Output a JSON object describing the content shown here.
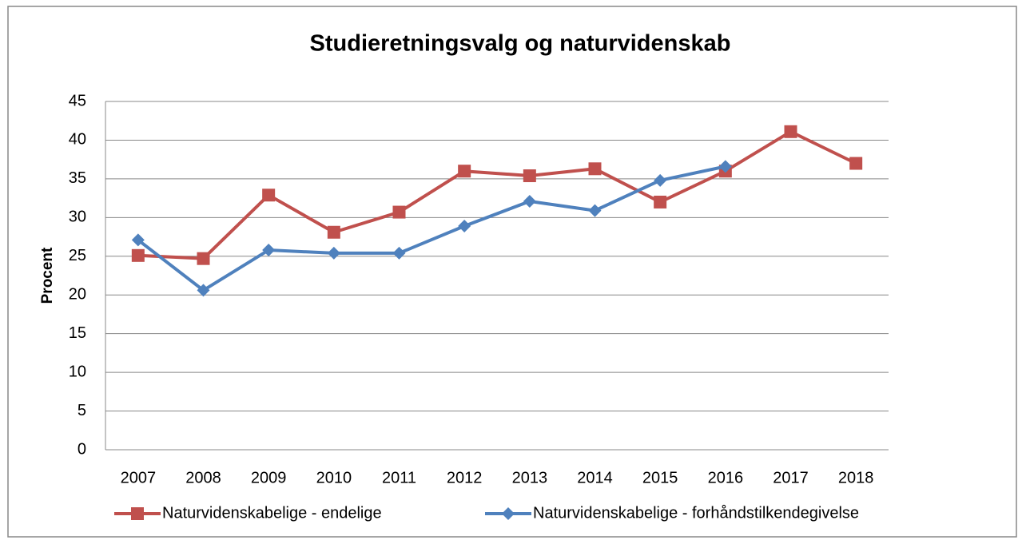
{
  "chart_data": {
    "type": "line",
    "title": "Studieretningsvalg og naturvidenskab",
    "y_label": "Procent",
    "categories": [
      "2007",
      "2008",
      "2009",
      "2010",
      "2011",
      "2012",
      "2013",
      "2014",
      "2015",
      "2016",
      "2017",
      "2018"
    ],
    "series": [
      {
        "name": "Naturvidenskabelige - endelige",
        "color": "#c0504d",
        "marker": "square",
        "values": [
          25.1,
          24.7,
          32.9,
          28.1,
          30.7,
          36.0,
          35.4,
          36.3,
          32.0,
          36.0,
          41.1,
          37.0
        ]
      },
      {
        "name": "Naturvidenskabelige - forhåndstilkendegivelse",
        "color": "#4f81bd",
        "marker": "diamond",
        "values": [
          27.1,
          20.6,
          25.8,
          25.4,
          25.4,
          28.9,
          32.1,
          30.9,
          34.8,
          36.6,
          null,
          null
        ]
      }
    ],
    "ylim": [
      0,
      45
    ],
    "yticks": [
      0,
      5,
      10,
      15,
      20,
      25,
      30,
      35,
      40,
      45
    ],
    "grid": true,
    "legend": "bottom"
  }
}
